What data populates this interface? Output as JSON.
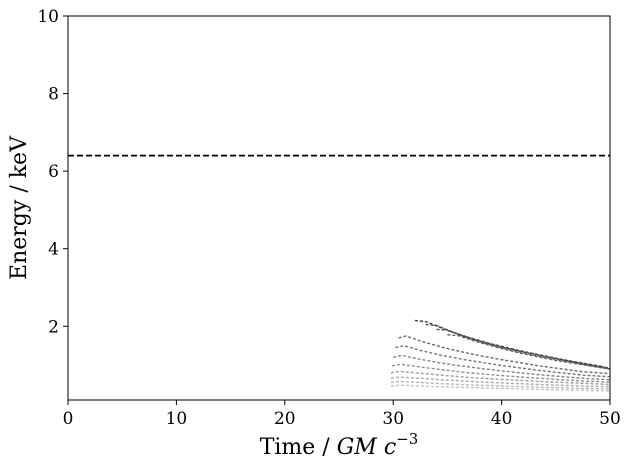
{
  "chart_data": {
    "type": "line",
    "title": "",
    "xlabel": "Time / ",
    "xlabel_math": "GM c",
    "xlabel_exponent": "−3",
    "ylabel": "Energy / keV",
    "xlim": [
      0,
      50
    ],
    "ylim": [
      0.1,
      10
    ],
    "grid": false,
    "xticks": [
      0,
      10,
      20,
      30,
      40,
      50
    ],
    "yticks": [
      2,
      4,
      6,
      8,
      10
    ],
    "reference_line": {
      "y": 6.4,
      "style": "dashed",
      "color": "#000000"
    },
    "colors": {
      "dark": "#333333",
      "mid": "#777777",
      "light": "#bbbbbb"
    },
    "series": [
      {
        "color": "#3a3a3a",
        "x": [
          32.0,
          33.0,
          34.5,
          36.5,
          39.0,
          42.0,
          45.5,
          49.5
        ],
        "y": [
          2.15,
          2.12,
          1.95,
          1.75,
          1.55,
          1.35,
          1.15,
          0.95
        ]
      },
      {
        "color": "#464646",
        "x": [
          33.0,
          34.0,
          35.5,
          37.5,
          40.0,
          43.0,
          46.5,
          50.0
        ],
        "y": [
          2.05,
          2.02,
          1.85,
          1.66,
          1.47,
          1.28,
          1.09,
          0.92
        ]
      },
      {
        "color": "#525252",
        "x": [
          34.0,
          35.0,
          36.5,
          38.5,
          41.0,
          44.0,
          47.5,
          50.0
        ],
        "y": [
          1.92,
          1.9,
          1.74,
          1.56,
          1.38,
          1.2,
          1.02,
          0.9
        ]
      },
      {
        "color": "#5e5e5e",
        "x": [
          35.0,
          36.0,
          37.5,
          39.5,
          42.0,
          45.0,
          48.5,
          50.0
        ],
        "y": [
          1.78,
          1.76,
          1.62,
          1.46,
          1.29,
          1.12,
          0.96,
          0.9
        ]
      },
      {
        "color": "#6a6a6a",
        "x": [
          30.5,
          31.2,
          32.5,
          34.5,
          37.0,
          40.0,
          43.5,
          47.5,
          50.0
        ],
        "y": [
          1.7,
          1.75,
          1.62,
          1.46,
          1.3,
          1.14,
          0.98,
          0.83,
          0.78
        ]
      },
      {
        "color": "#767676",
        "x": [
          30.2,
          31.0,
          32.5,
          34.5,
          37.0,
          40.0,
          43.5,
          47.5,
          50.0
        ],
        "y": [
          1.45,
          1.5,
          1.38,
          1.25,
          1.12,
          0.99,
          0.86,
          0.74,
          0.7
        ]
      },
      {
        "color": "#838383",
        "x": [
          30.0,
          30.8,
          32.5,
          34.5,
          37.0,
          40.0,
          43.5,
          47.5,
          50.0
        ],
        "y": [
          1.2,
          1.25,
          1.15,
          1.05,
          0.95,
          0.85,
          0.75,
          0.66,
          0.62
        ]
      },
      {
        "color": "#909090",
        "x": [
          29.9,
          30.7,
          32.5,
          34.5,
          37.0,
          40.0,
          43.5,
          47.5,
          50.0
        ],
        "y": [
          0.98,
          1.02,
          0.95,
          0.88,
          0.8,
          0.73,
          0.66,
          0.59,
          0.56
        ]
      },
      {
        "color": "#9d9d9d",
        "x": [
          29.8,
          30.6,
          32.5,
          34.5,
          37.0,
          40.0,
          43.5,
          47.5,
          50.0
        ],
        "y": [
          0.8,
          0.84,
          0.79,
          0.74,
          0.68,
          0.63,
          0.58,
          0.53,
          0.5
        ]
      },
      {
        "color": "#aaaaaa",
        "x": [
          29.8,
          30.6,
          32.5,
          34.5,
          37.0,
          40.0,
          43.5,
          47.5,
          50.0
        ],
        "y": [
          0.66,
          0.69,
          0.66,
          0.62,
          0.58,
          0.54,
          0.5,
          0.46,
          0.44
        ]
      },
      {
        "color": "#b7b7b7",
        "x": [
          29.8,
          30.6,
          32.5,
          34.5,
          37.0,
          40.0,
          43.5,
          47.5,
          50.0
        ],
        "y": [
          0.55,
          0.58,
          0.55,
          0.52,
          0.49,
          0.46,
          0.43,
          0.4,
          0.38
        ]
      },
      {
        "color": "#c4c4c4",
        "x": [
          29.8,
          30.6,
          32.5,
          34.5,
          37.0,
          40.0,
          43.5,
          47.5,
          50.0
        ],
        "y": [
          0.46,
          0.48,
          0.46,
          0.44,
          0.42,
          0.4,
          0.37,
          0.35,
          0.33
        ]
      }
    ]
  }
}
